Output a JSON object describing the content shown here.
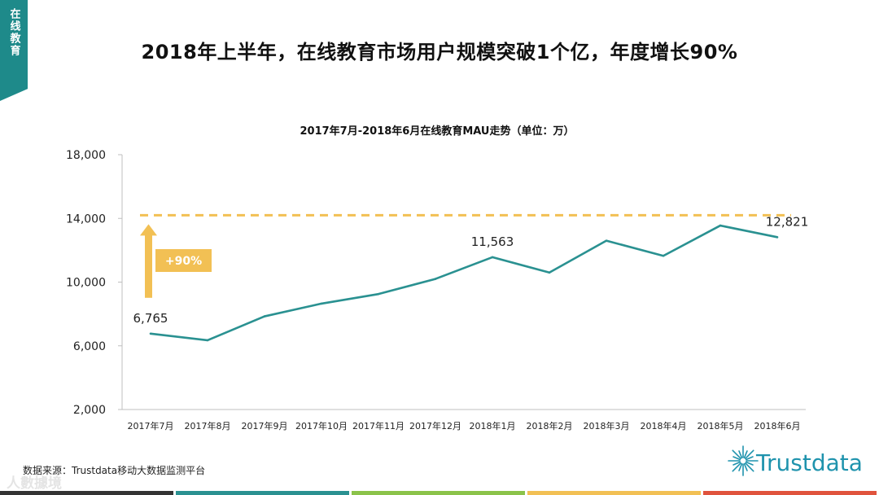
{
  "side_tab": {
    "label": "在线教育"
  },
  "page": {
    "title": "2018年上半年，在线教育市场用户规模突破1个亿，年度增长90%"
  },
  "chart_data": {
    "type": "line",
    "title": "2017年7月-2018年6月在线教育MAU走势（单位：万）",
    "categories": [
      "2017年7月",
      "2017年8月",
      "2017年9月",
      "2017年10月",
      "2017年11月",
      "2017年12月",
      "2018年1月",
      "2018年2月",
      "2018年3月",
      "2018年4月",
      "2018年5月",
      "2018年6月"
    ],
    "series": [
      {
        "name": "MAU",
        "color": "#2a9191",
        "values": [
          6765,
          6350,
          7850,
          8650,
          9250,
          10200,
          11563,
          10600,
          12600,
          11650,
          13550,
          12821
        ]
      }
    ],
    "ylim": [
      2000,
      18000
    ],
    "yticks": [
      2000,
      6000,
      10000,
      14000,
      18000
    ],
    "ytick_labels": [
      "2,000",
      "6,000",
      "10,000",
      "14,000",
      "18,000"
    ],
    "data_labels": [
      {
        "index": 0,
        "text": "6,765"
      },
      {
        "index": 6,
        "text": "11,563"
      },
      {
        "index": 11,
        "text": "12,821"
      }
    ],
    "reference_line": {
      "value": 14200,
      "color": "#f2c054",
      "style": "dashed"
    },
    "growth_annotation": {
      "text": "+90%",
      "color": "#f2c054"
    },
    "grid": false
  },
  "footer": {
    "source": "数据来源：Trustdata移动大数据监测平台",
    "watermark": "人數據境",
    "brand": "Trustdata",
    "brand_color": "#1f93ad",
    "bar_colors": [
      "#333333",
      "#2a9191",
      "#8bc34a",
      "#f2c054",
      "#e0533d"
    ]
  }
}
